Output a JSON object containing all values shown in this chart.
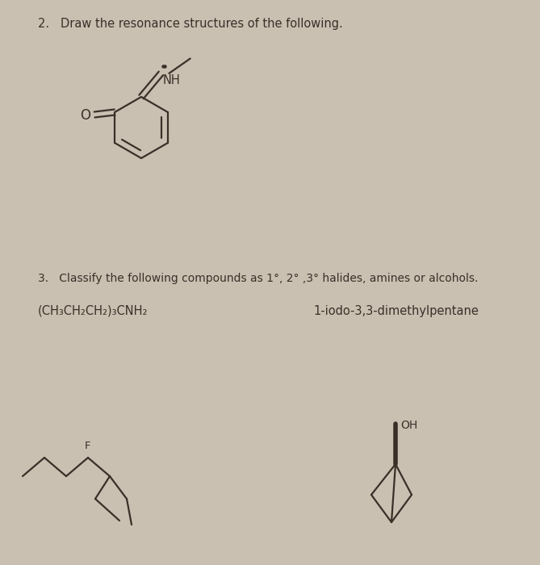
{
  "bg_color": "#c9c0b2",
  "text_color": "#3a3028",
  "title1": "2.   Draw the resonance structures of the following.",
  "title2": "3.   Classify the following compounds as 1°, 2° ,3° halides, amines or alcohols.",
  "compound1_label": "(CH₃CH₂CH₂)₃CNH₂",
  "compound2_label": "1-iodo-3,3-dimethylpentane",
  "line_color": "#3a3028",
  "line_width": 1.6
}
